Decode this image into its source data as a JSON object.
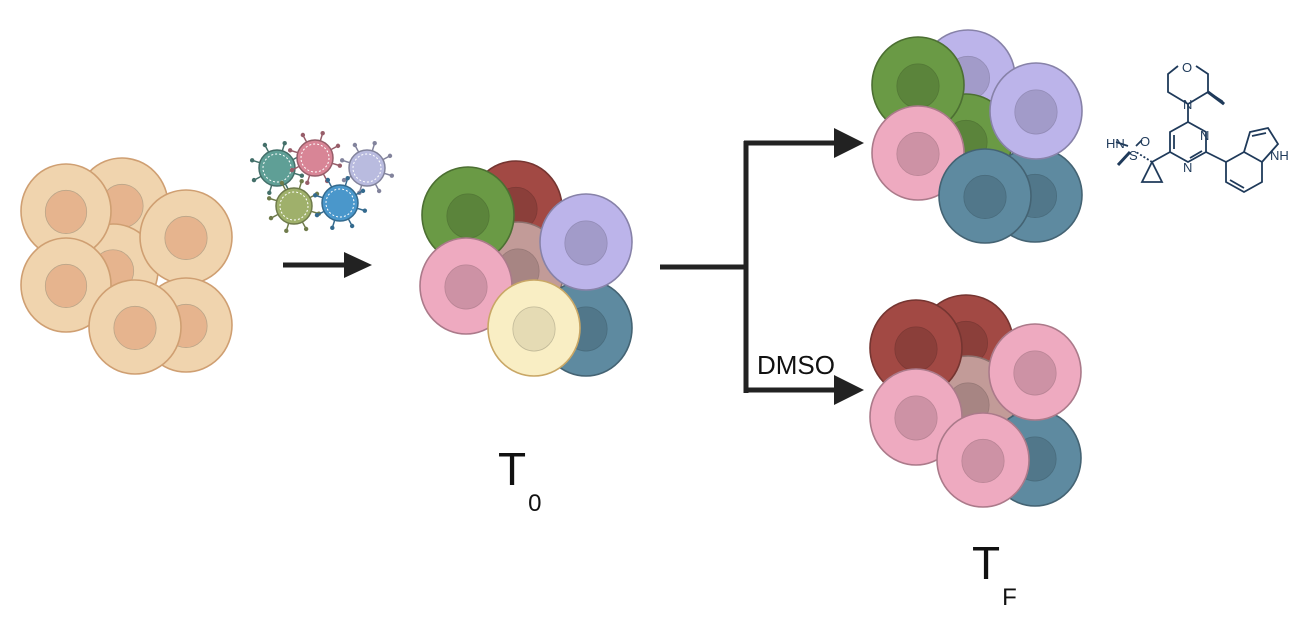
{
  "figure": {
    "start_label": {
      "main": "T",
      "sub": "0"
    },
    "end_label": {
      "main": "T",
      "sub": "F"
    },
    "control_branch_label": "DMSO",
    "palette": {
      "parental": "#f0d4ae",
      "parental_nucleus": "#e6b48e",
      "parental_outline": "#cf9f72",
      "green": "#6a9a45",
      "red": "#a24944",
      "lavender": "#bcb4ea",
      "pink": "#eeaac0",
      "cream": "#f9eec4",
      "steel_blue": "#5e8aa0",
      "mauve": "#c29b98",
      "arrow": "#222222",
      "chemical": "#1f3a5a"
    },
    "compound_atoms": [
      "O",
      "N",
      "N",
      "N",
      "NH",
      "HN",
      "S",
      "O"
    ]
  }
}
